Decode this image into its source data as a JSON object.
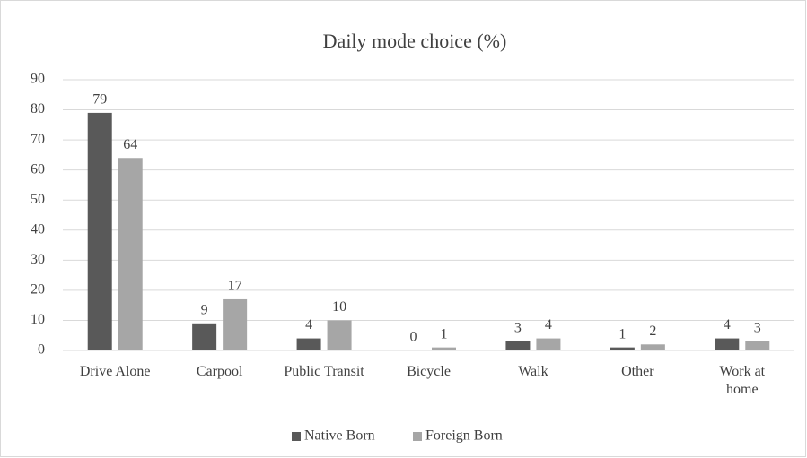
{
  "chart_data": {
    "type": "bar",
    "title": "Daily mode choice (%)",
    "categories": [
      "Drive Alone",
      "Carpool",
      "Public Transit",
      "Bicycle",
      "Walk",
      "Other",
      "Work at home"
    ],
    "series": [
      {
        "name": "Native Born",
        "color": "#595959",
        "values": [
          79,
          9,
          4,
          0,
          3,
          1,
          4
        ]
      },
      {
        "name": "Foreign Born",
        "color": "#a6a6a6",
        "values": [
          64,
          17,
          10,
          1,
          4,
          2,
          3
        ]
      }
    ],
    "ylim": [
      0,
      90
    ],
    "yticks": [
      0,
      10,
      20,
      30,
      40,
      50,
      60,
      70,
      80,
      90
    ],
    "grid": true,
    "legend": "bottom"
  }
}
